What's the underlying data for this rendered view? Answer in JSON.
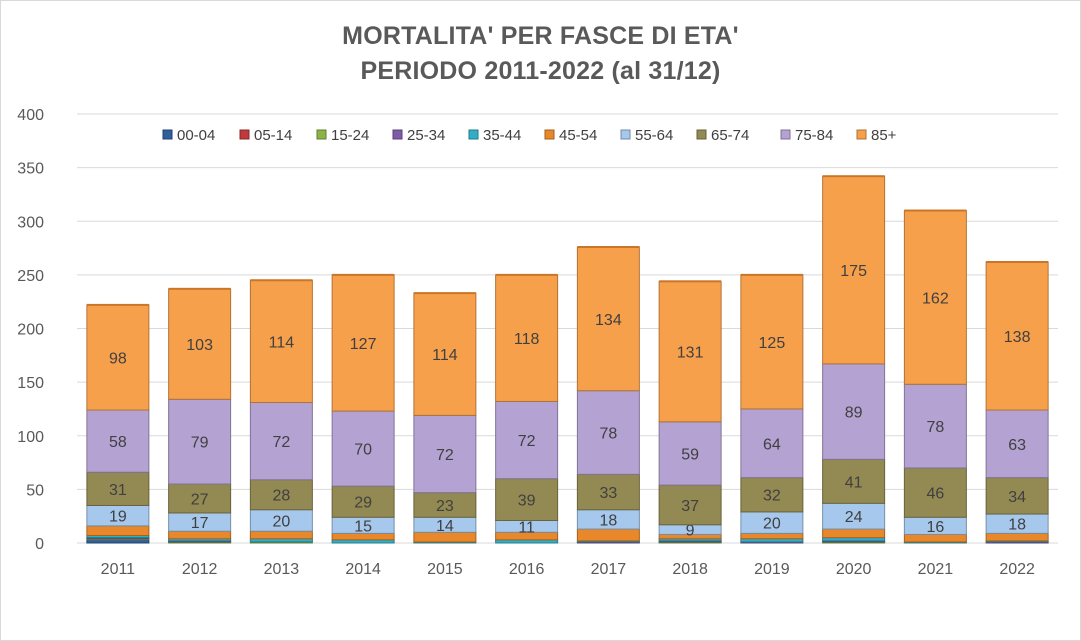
{
  "chart_data": {
    "type": "bar",
    "stacked": true,
    "title_lines": [
      "MORTALITA' PER FASCE DI ETA'",
      "PERIODO 2011-2022 (al 31/12)"
    ],
    "xlabel": "",
    "ylabel": "",
    "ylim": [
      0,
      400
    ],
    "yticks": [
      0,
      50,
      100,
      150,
      200,
      250,
      300,
      350,
      400
    ],
    "grid": true,
    "legend_position": "top",
    "categories": [
      "2011",
      "2012",
      "2013",
      "2014",
      "2015",
      "2016",
      "2017",
      "2018",
      "2019",
      "2020",
      "2021",
      "2022"
    ],
    "series": [
      {
        "name": "00-04",
        "color": "#2e5f9e",
        "values": [
          3,
          0,
          0,
          0,
          0,
          0,
          0,
          0,
          0,
          0,
          0,
          0
        ]
      },
      {
        "name": "05-14",
        "color": "#c0393b",
        "values": [
          0,
          0,
          0,
          0,
          0,
          0,
          0,
          0,
          0,
          0,
          0,
          0
        ]
      },
      {
        "name": "15-24",
        "color": "#8cb347",
        "values": [
          1,
          1,
          1,
          0,
          0,
          0,
          0,
          1,
          0,
          1,
          0,
          0
        ]
      },
      {
        "name": "25-34",
        "color": "#7d5ba6",
        "values": [
          1,
          1,
          0,
          0,
          0,
          0,
          1,
          1,
          1,
          1,
          0,
          1
        ]
      },
      {
        "name": "35-44",
        "color": "#31aec6",
        "values": [
          2,
          2,
          3,
          3,
          1,
          3,
          1,
          2,
          3,
          3,
          1,
          1
        ]
      },
      {
        "name": "45-54",
        "color": "#e8882a",
        "values": [
          9,
          7,
          7,
          6,
          9,
          7,
          11,
          4,
          5,
          8,
          7,
          7
        ]
      },
      {
        "name": "55-64",
        "color": "#a5c8ec",
        "values": [
          19,
          17,
          20,
          15,
          14,
          11,
          18,
          9,
          20,
          24,
          16,
          18
        ]
      },
      {
        "name": "65-74",
        "color": "#938953",
        "values": [
          31,
          27,
          28,
          29,
          23,
          39,
          33,
          37,
          32,
          41,
          46,
          34
        ]
      },
      {
        "name": "75-84",
        "color": "#b3a2d2",
        "values": [
          58,
          79,
          72,
          70,
          72,
          72,
          78,
          59,
          64,
          89,
          78,
          63
        ]
      },
      {
        "name": "85+",
        "color": "#f7a04b",
        "values": [
          98,
          103,
          114,
          127,
          114,
          118,
          134,
          131,
          125,
          175,
          162,
          138
        ]
      }
    ],
    "data_labels_for_series": [
      "55-64",
      "65-74",
      "75-84",
      "85+"
    ]
  }
}
